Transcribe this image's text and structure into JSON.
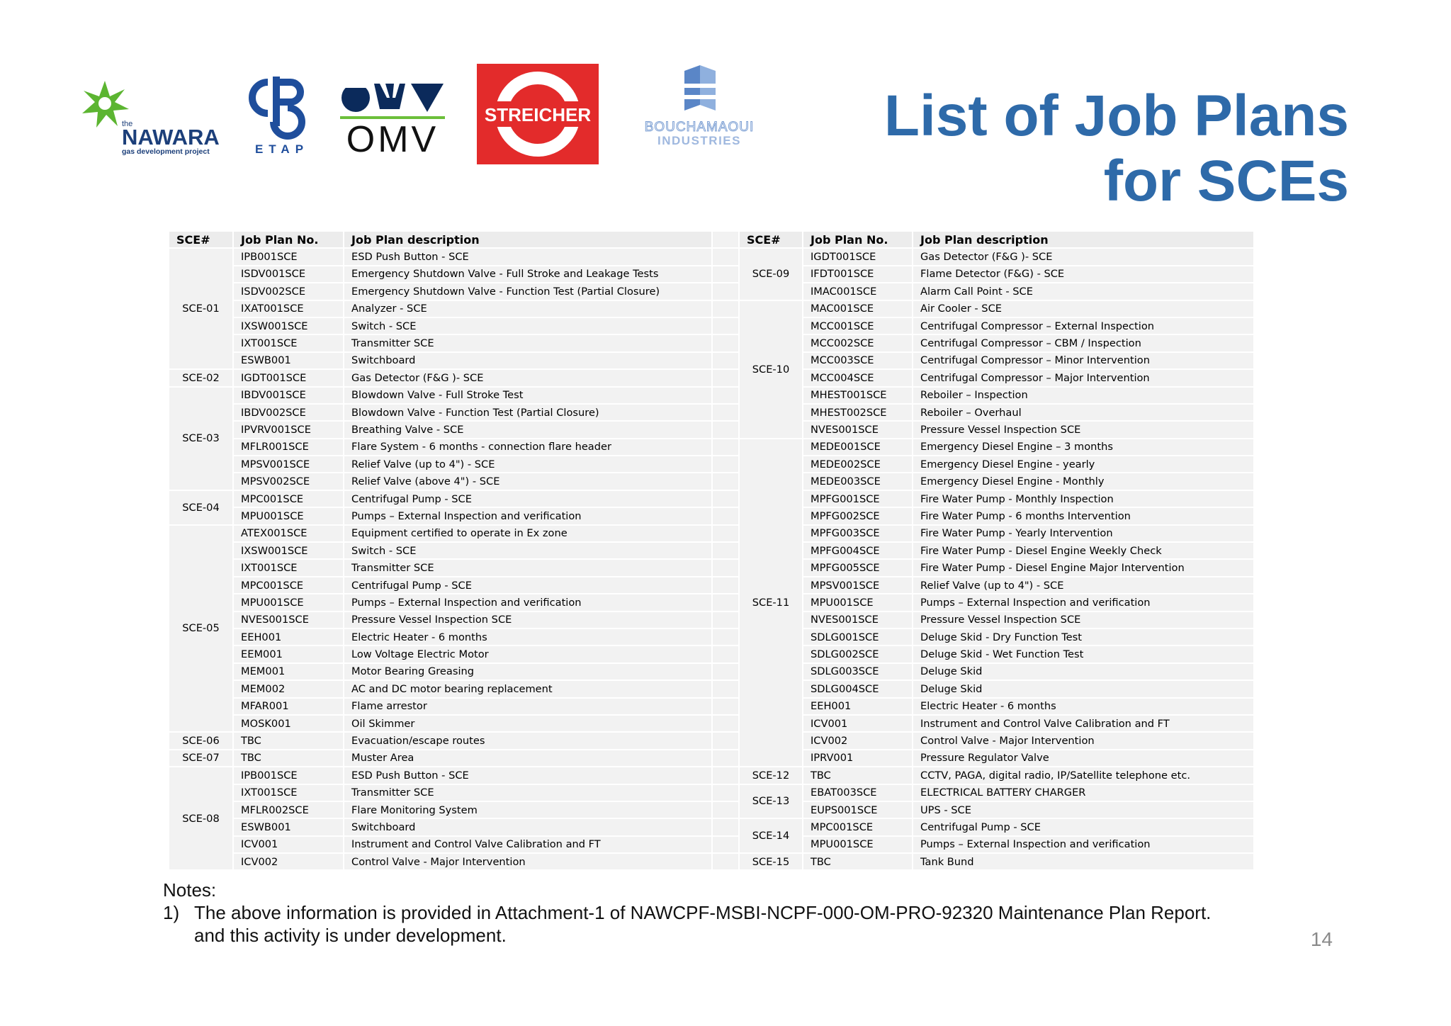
{
  "page": {
    "title_line1": "List of Job Plans",
    "title_line2": "for SCEs",
    "page_number": "14"
  },
  "logos": {
    "nawara_small": "the",
    "nawara_name": "NAWARA",
    "nawara_tag": "gas development project",
    "etap": "ETAP",
    "omv": "OMV",
    "streicher": "STREICHER",
    "bouchamaoui_1": "BOUCHAMAOUI",
    "bouchamaoui_2": "INDUSTRIES"
  },
  "table": {
    "headers": [
      "SCE#",
      "Job Plan No.",
      "Job Plan description"
    ],
    "left_groups": [
      {
        "sce": "SCE-01",
        "rows": [
          [
            "IPB001SCE",
            "ESD Push Button - SCE"
          ],
          [
            "ISDV001SCE",
            "Emergency Shutdown Valve - Full Stroke and Leakage Tests"
          ],
          [
            "ISDV002SCE",
            "Emergency Shutdown Valve - Function Test (Partial Closure)"
          ],
          [
            "IXAT001SCE",
            "Analyzer - SCE"
          ],
          [
            "IXSW001SCE",
            "Switch - SCE"
          ],
          [
            "IXT001SCE",
            "Transmitter SCE"
          ],
          [
            "ESWB001",
            "Switchboard"
          ]
        ]
      },
      {
        "sce": "SCE-02",
        "rows": [
          [
            "IGDT001SCE",
            "Gas Detector (F&G )- SCE"
          ]
        ]
      },
      {
        "sce": "SCE-03",
        "rows": [
          [
            "IBDV001SCE",
            "Blowdown Valve - Full Stroke Test"
          ],
          [
            "IBDV002SCE",
            "Blowdown Valve - Function Test (Partial Closure)"
          ],
          [
            "IPVRV001SCE",
            "Breathing Valve - SCE"
          ],
          [
            "MFLR001SCE",
            "Flare System - 6 months - connection flare header"
          ],
          [
            "MPSV001SCE",
            "Relief Valve (up to 4\") - SCE"
          ],
          [
            "MPSV002SCE",
            "Relief Valve (above 4\") - SCE"
          ]
        ]
      },
      {
        "sce": "SCE-04",
        "rows": [
          [
            "MPC001SCE",
            "Centrifugal Pump - SCE"
          ],
          [
            "MPU001SCE",
            "Pumps – External Inspection and verification"
          ]
        ]
      },
      {
        "sce": "SCE-05",
        "rows": [
          [
            "ATEX001SCE",
            "Equipment certified to operate in Ex zone"
          ],
          [
            "IXSW001SCE",
            "Switch - SCE"
          ],
          [
            "IXT001SCE",
            "Transmitter SCE"
          ],
          [
            "MPC001SCE",
            "Centrifugal Pump - SCE"
          ],
          [
            "MPU001SCE",
            "Pumps – External Inspection and verification"
          ],
          [
            "NVES001SCE",
            "Pressure Vessel Inspection SCE"
          ],
          [
            "EEH001",
            "Electric Heater - 6 months"
          ],
          [
            "EEM001",
            "Low Voltage Electric Motor"
          ],
          [
            "MEM001",
            "Motor Bearing Greasing"
          ],
          [
            "MEM002",
            "AC and DC motor bearing replacement"
          ],
          [
            "MFAR001",
            "Flame arrestor"
          ],
          [
            "MOSK001",
            "Oil Skimmer"
          ]
        ]
      },
      {
        "sce": "SCE-06",
        "rows": [
          [
            "TBC",
            "Evacuation/escape routes"
          ]
        ]
      },
      {
        "sce": "SCE-07",
        "rows": [
          [
            "TBC",
            "Muster Area"
          ]
        ]
      },
      {
        "sce": "SCE-08",
        "rows": [
          [
            "IPB001SCE",
            "ESD Push Button - SCE"
          ],
          [
            "IXT001SCE",
            "Transmitter SCE"
          ],
          [
            "MFLR002SCE",
            "Flare Monitoring System"
          ],
          [
            "ESWB001",
            "Switchboard"
          ],
          [
            "ICV001",
            "Instrument and Control Valve Calibration and FT"
          ],
          [
            "ICV002",
            "Control Valve - Major Intervention"
          ]
        ]
      }
    ],
    "right_groups": [
      {
        "sce": "SCE-09",
        "rows": [
          [
            "IGDT001SCE",
            "Gas Detector (F&G )- SCE"
          ],
          [
            "IFDT001SCE",
            "Flame Detector (F&G) - SCE"
          ],
          [
            "IMAC001SCE",
            "Alarm Call Point - SCE"
          ]
        ]
      },
      {
        "sce": "SCE-10",
        "rows": [
          [
            "MAC001SCE",
            "Air Cooler - SCE"
          ],
          [
            "MCC001SCE",
            "Centrifugal Compressor – External Inspection"
          ],
          [
            "MCC002SCE",
            "Centrifugal Compressor – CBM / Inspection"
          ],
          [
            "MCC003SCE",
            "Centrifugal Compressor – Minor Intervention"
          ],
          [
            "MCC004SCE",
            "Centrifugal Compressor – Major Intervention"
          ],
          [
            "MHEST001SCE",
            "Reboiler – Inspection"
          ],
          [
            "MHEST002SCE",
            "Reboiler – Overhaul"
          ],
          [
            "NVES001SCE",
            "Pressure Vessel Inspection SCE"
          ]
        ]
      },
      {
        "sce": "SCE-11",
        "rows": [
          [
            "MEDE001SCE",
            "Emergency Diesel Engine – 3 months"
          ],
          [
            "MEDE002SCE",
            "Emergency Diesel Engine - yearly"
          ],
          [
            "MEDE003SCE",
            "Emergency Diesel Engine - Monthly"
          ],
          [
            "MPFG001SCE",
            "Fire Water Pump - Monthly Inspection"
          ],
          [
            "MPFG002SCE",
            "Fire Water Pump - 6 months Intervention"
          ],
          [
            "MPFG003SCE",
            "Fire Water Pump - Yearly Intervention"
          ],
          [
            "MPFG004SCE",
            "Fire Water Pump - Diesel Engine Weekly Check"
          ],
          [
            "MPFG005SCE",
            "Fire Water Pump - Diesel Engine Major Intervention"
          ],
          [
            "MPSV001SCE",
            "Relief Valve (up to 4\") - SCE"
          ],
          [
            "MPU001SCE",
            "Pumps – External Inspection and verification"
          ],
          [
            "NVES001SCE",
            "Pressure Vessel Inspection SCE"
          ],
          [
            "SDLG001SCE",
            "Deluge Skid - Dry Function Test"
          ],
          [
            "SDLG002SCE",
            "Deluge Skid - Wet Function Test"
          ],
          [
            "SDLG003SCE",
            "Deluge Skid"
          ],
          [
            "SDLG004SCE",
            "Deluge Skid"
          ],
          [
            "EEH001",
            "Electric Heater - 6 months"
          ],
          [
            "ICV001",
            "Instrument and Control Valve Calibration and FT"
          ],
          [
            "ICV002",
            "Control Valve - Major Intervention"
          ],
          [
            "IPRV001",
            "Pressure Regulator Valve"
          ]
        ]
      },
      {
        "sce": "SCE-12",
        "rows": [
          [
            "TBC",
            "CCTV, PAGA, digital radio, IP/Satellite telephone etc."
          ]
        ]
      },
      {
        "sce": "SCE-13",
        "rows": [
          [
            "EBAT003SCE",
            "ELECTRICAL BATTERY CHARGER"
          ],
          [
            "EUPS001SCE",
            "UPS - SCE"
          ]
        ]
      },
      {
        "sce": "SCE-14",
        "rows": [
          [
            "MPC001SCE",
            "Centrifugal Pump - SCE"
          ],
          [
            "MPU001SCE",
            "Pumps – External Inspection and verification"
          ]
        ]
      },
      {
        "sce": "SCE-15",
        "rows": [
          [
            "TBC",
            "Tank Bund"
          ]
        ]
      }
    ]
  },
  "notes": {
    "heading": "Notes:",
    "item_num": "1)",
    "item_line1": "The above information is provided in Attachment-1 of NAWCPF-MSBI-NCPF-000-OM-PRO-92320 Maintenance Plan Report.",
    "item_line2": "and this activity is under development."
  },
  "colors": {
    "title_blue": "#2e6aa9",
    "nawara_green": "#5cb531",
    "nawara_blue": "#1c3f7a",
    "etap_blue": "#1f4e9c",
    "omv_navy": "#0b2a5b",
    "omv_green": "#6cbf3a",
    "streicher_red": "#e32b2b",
    "bouchamaoui_blue": "#5a86c7"
  }
}
